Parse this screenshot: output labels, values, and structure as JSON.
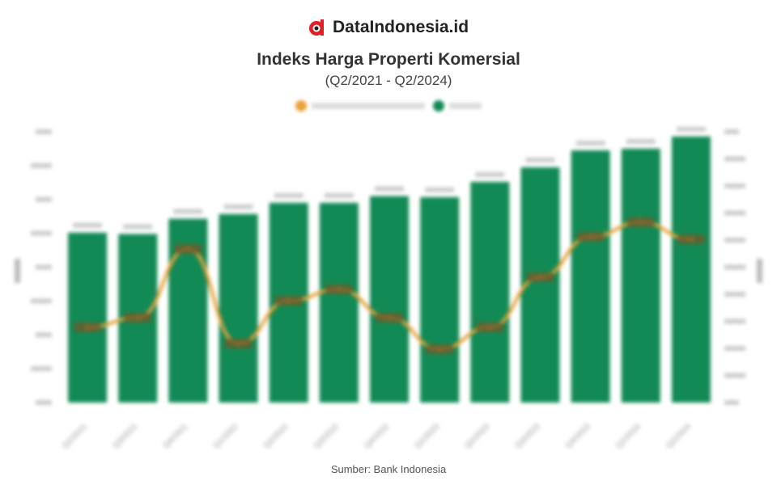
{
  "brand": {
    "name": "DataIndonesia.id",
    "accent": "#e31e24"
  },
  "title": "Indeks Harga Properti Komersial",
  "subtitle": "(Q2/2021 - Q2/2024)",
  "source": "Sumber: Bank Indonesia",
  "chart_data": {
    "type": "bar+line",
    "title": "Indeks Harga Properti Komersial",
    "subtitle": "(Q2/2021 - Q2/2024)",
    "categories": [
      "Q2/2021",
      "Q3/2021",
      "Q4/2021",
      "Q1/2022",
      "Q2/2022",
      "Q3/2022",
      "Q4/2022",
      "Q1/2023",
      "Q2/2023",
      "Q3/2023",
      "Q4/2023",
      "Q1/2024",
      "Q2/2024"
    ],
    "series": [
      {
        "type": "bar",
        "axis": "left",
        "color": "#128a55",
        "values": [
          5.02,
          4.98,
          5.43,
          5.57,
          5.9,
          5.9,
          6.1,
          6.07,
          6.52,
          6.95,
          7.45,
          7.5,
          7.86
        ]
      },
      {
        "type": "line",
        "axis": "right",
        "color": "#e8a23a",
        "values": [
          2.78,
          3.13,
          5.67,
          2.18,
          3.76,
          4.18,
          3.13,
          1.97,
          2.78,
          4.63,
          6.12,
          6.66,
          6.03
        ]
      }
    ],
    "ylim_left": [
      0,
      8
    ],
    "ylim_right": [
      0,
      10
    ],
    "grid": false,
    "legend": "top"
  }
}
